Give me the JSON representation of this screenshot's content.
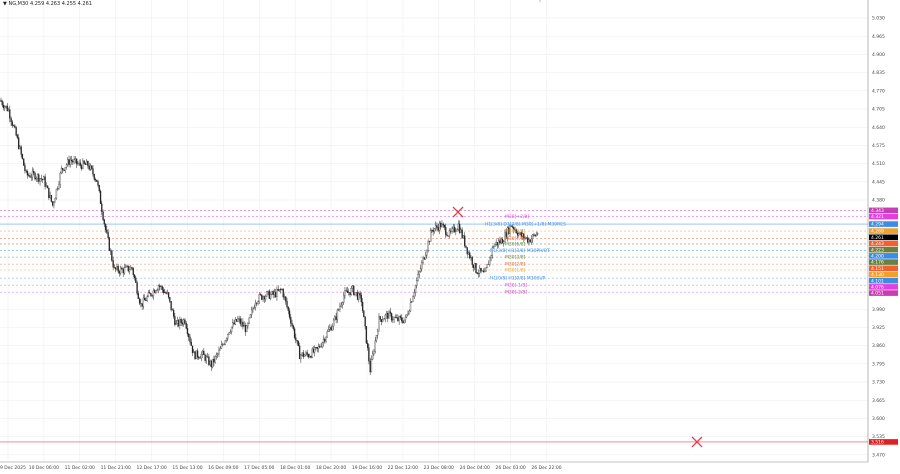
{
  "header": {
    "symbol": "NG,M30",
    "ohlc": "4.259 4.263 4.255 4.261",
    "arrow_icon": "triangle-down-icon"
  },
  "price_axis": {
    "min": 3.47,
    "max": 5.03,
    "ticks": [
      "5.030",
      "4.965",
      "4.900",
      "4.835",
      "4.770",
      "4.705",
      "4.640",
      "4.575",
      "4.510",
      "4.445",
      "4.380",
      "3.990",
      "3.925",
      "3.860",
      "3.795",
      "3.730",
      "3.665",
      "3.600",
      "3.535",
      "3.470"
    ]
  },
  "time_axis": {
    "ticks": [
      "9 Dec 2025",
      "10 Dec 06:00",
      "11 Dec 02:00",
      "11 Dec 21:00",
      "12 Dec 17:00",
      "15 Dec 13:00",
      "16 Dec 09:00",
      "17 Dec 05:00",
      "18 Dec 01:00",
      "18 Dec 20:00",
      "19 Dec 16:00",
      "22 Dec 12:00",
      "23 Dec 08:00",
      "24 Dec 04:00",
      "26 Dec 03:00",
      "26 Dec 22:00"
    ]
  },
  "price_path": [
    4.737,
    4.701,
    4.594,
    4.469,
    4.469,
    4.451,
    4.362,
    4.487,
    4.523,
    4.505,
    4.505,
    4.451,
    4.273,
    4.13,
    4.13,
    4.137,
    4.005,
    4.041,
    4.076,
    4.041,
    3.934,
    3.952,
    3.827,
    3.827,
    3.791,
    3.844,
    3.916,
    3.952,
    3.916,
    4.023,
    4.041,
    4.041,
    4.059,
    3.952,
    3.827,
    3.827,
    3.844,
    3.898,
    3.952,
    4.041,
    4.059,
    4.023,
    3.773,
    3.952,
    3.969,
    3.952,
    3.952,
    4.059,
    4.166,
    4.273,
    4.291,
    4.255,
    4.291,
    4.201,
    4.13,
    4.112,
    4.219,
    4.237,
    4.291,
    4.255,
    4.237,
    4.261
  ],
  "levels": [
    {
      "price": 4.343,
      "value": "4.343",
      "color": "#c83cb4",
      "label": "",
      "style": "dash"
    },
    {
      "price": 4.321,
      "value": "4.321",
      "color": "#e040e0",
      "label": "M30[+2/8]",
      "style": "dash"
    },
    {
      "price": 4.294,
      "value": "4.294",
      "color": "#3c8ce6",
      "label": "H1[3/8] D1[3/8] M30[+1/8] M30RES",
      "style": "solid"
    },
    {
      "price": 4.269,
      "value": "4.269",
      "color": "#f0a030",
      "label": "M30[8/8]",
      "style": "dash"
    },
    {
      "price": 4.261,
      "value": "4.261",
      "color": "#000000",
      "label": "",
      "style": "none"
    },
    {
      "price": 4.243,
      "value": "4.243",
      "color": "#f06030",
      "label": "M30[7/8]",
      "style": "dash"
    },
    {
      "price": 4.223,
      "value": "4.223",
      "color": "#6a8040",
      "label": "M30[6/8]",
      "style": "dash"
    },
    {
      "price": 4.2,
      "value": "4.200",
      "color": "#3c8ce6",
      "label": "H1[3/8] H1[3/8] M30PIVOT",
      "style": "dash"
    },
    {
      "price": 4.176,
      "value": "4.176",
      "color": "#6a8040",
      "label": "M30[3/8]",
      "style": "dash"
    },
    {
      "price": 4.151,
      "value": "4.151",
      "color": "#f06030",
      "label": "M30[2/8]",
      "style": "dash"
    },
    {
      "price": 4.13,
      "value": "4.130",
      "color": "#f0a030",
      "label": "M30[1/8]",
      "style": "dash"
    },
    {
      "price": 4.101,
      "value": "4.101",
      "color": "#3c8ce6",
      "label": "H1[0/8] H1[0/8] M30SUP",
      "style": "dash"
    },
    {
      "price": 4.076,
      "value": "4.076",
      "color": "#e040e0",
      "label": "M30[-1/8]",
      "style": "dash"
    },
    {
      "price": 4.051,
      "value": "4.051",
      "color": "#c83cb4",
      "label": "M30[-2/8]",
      "style": "dash"
    },
    {
      "price": 3.516,
      "value": "3.516",
      "color": "#e02020",
      "label": "",
      "style": "solid"
    }
  ],
  "markers": [
    {
      "icon": "x-mark-icon",
      "price": 4.337,
      "color": "#e03c50"
    },
    {
      "icon": "x-mark-icon",
      "price": 3.516,
      "color": "#e03c50"
    }
  ]
}
